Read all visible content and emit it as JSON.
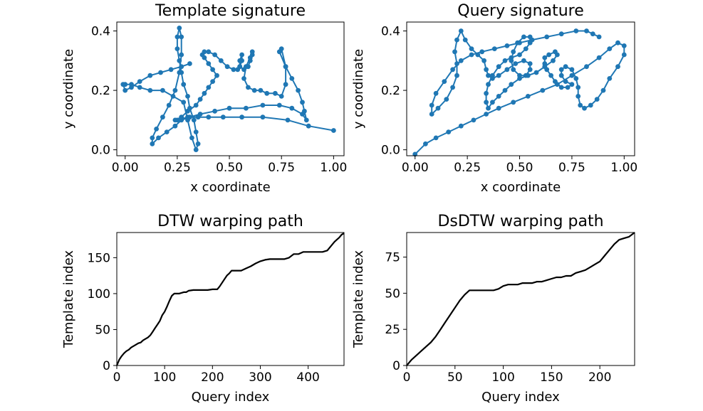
{
  "figure": {
    "panels": [
      {
        "id": "template-signature",
        "title": "Template signature",
        "xlabel": "x coordinate",
        "ylabel": "y coordinate",
        "xticks": [
          "0.00",
          "0.25",
          "0.50",
          "0.75",
          "1.00"
        ],
        "yticks": [
          "0.0",
          "0.2",
          "0.4"
        ]
      },
      {
        "id": "query-signature",
        "title": "Query signature",
        "xlabel": "x coordinate",
        "ylabel": "y coordinate",
        "xticks": [
          "0.00",
          "0.25",
          "0.50",
          "0.75",
          "1.00"
        ],
        "yticks": [
          "0.0",
          "0.2",
          "0.4"
        ]
      },
      {
        "id": "dtw-warping-path",
        "title": "DTW warping path",
        "xlabel": "Query index",
        "ylabel": "Template index",
        "xticks": [
          "0",
          "100",
          "200",
          "300",
          "400"
        ],
        "yticks": [
          "0",
          "50",
          "100",
          "150"
        ]
      },
      {
        "id": "dsdtw-warping-path",
        "title": "DsDTW warping path",
        "xlabel": "Query index",
        "ylabel": "Template index",
        "xticks": [
          "0",
          "50",
          "100",
          "150",
          "200"
        ],
        "yticks": [
          "0",
          "25",
          "50",
          "75"
        ]
      }
    ]
  },
  "colors": {
    "signature": "#1f77b4",
    "path": "#000000"
  },
  "chart_data": [
    {
      "type": "scatter",
      "title": "Template signature",
      "xlabel": "x coordinate",
      "ylabel": "y coordinate",
      "xlim": [
        -0.04,
        1.05
      ],
      "ylim": [
        -0.02,
        0.43
      ],
      "grid": false,
      "connected": true,
      "series": [
        {
          "x": [
            1.0,
            0.88,
            0.78,
            0.66,
            0.56,
            0.47,
            0.4,
            0.35,
            0.3,
            0.25,
            0.24,
            0.27,
            0.3,
            0.34,
            0.36,
            0.38,
            0.4,
            0.42,
            0.44,
            0.42,
            0.4,
            0.38,
            0.37,
            0.38,
            0.4,
            0.43,
            0.46,
            0.49,
            0.52,
            0.54,
            0.55,
            0.56,
            0.56,
            0.55,
            0.55,
            0.57,
            0.59,
            0.6,
            0.61,
            0.61,
            0.6,
            0.58,
            0.57,
            0.59,
            0.62,
            0.65,
            0.68,
            0.72,
            0.75,
            0.77,
            0.77,
            0.75,
            0.74,
            0.77,
            0.8,
            0.83,
            0.85,
            0.86,
            0.87,
            0.85,
            0.8,
            0.74,
            0.66,
            0.58,
            0.5,
            0.43,
            0.36,
            0.31,
            0.27,
            0.24,
            0.2,
            0.16,
            0.13,
            0.13,
            0.15,
            0.18,
            0.21,
            0.24,
            0.26,
            0.27,
            0.27,
            0.26,
            0.25,
            0.25,
            0.26,
            0.27,
            0.28,
            0.3,
            0.31,
            0.33,
            0.34,
            0.35,
            0.34,
            0.32,
            0.3,
            0.28,
            0.23,
            0.18,
            0.12,
            0.07,
            0.03,
            0.0,
            -0.01,
            0.0,
            0.03,
            0.07,
            0.12,
            0.17,
            0.22,
            0.27,
            0.31
          ],
          "y": [
            0.065,
            0.08,
            0.1,
            0.11,
            0.11,
            0.11,
            0.11,
            0.11,
            0.11,
            0.1,
            0.1,
            0.11,
            0.13,
            0.15,
            0.17,
            0.19,
            0.21,
            0.23,
            0.25,
            0.27,
            0.29,
            0.31,
            0.32,
            0.33,
            0.33,
            0.32,
            0.3,
            0.28,
            0.27,
            0.27,
            0.28,
            0.3,
            0.32,
            0.3,
            0.28,
            0.27,
            0.28,
            0.3,
            0.32,
            0.33,
            0.31,
            0.28,
            0.24,
            0.21,
            0.2,
            0.2,
            0.19,
            0.19,
            0.18,
            0.22,
            0.28,
            0.34,
            0.33,
            0.28,
            0.24,
            0.2,
            0.16,
            0.13,
            0.1,
            0.12,
            0.14,
            0.15,
            0.15,
            0.14,
            0.14,
            0.13,
            0.12,
            0.11,
            0.1,
            0.08,
            0.06,
            0.04,
            0.02,
            0.04,
            0.07,
            0.11,
            0.15,
            0.2,
            0.26,
            0.32,
            0.38,
            0.41,
            0.38,
            0.34,
            0.3,
            0.26,
            0.22,
            0.18,
            0.14,
            0.1,
            0.06,
            0.02,
            0.0,
            0.04,
            0.1,
            0.16,
            0.18,
            0.2,
            0.2,
            0.21,
            0.22,
            0.22,
            0.22,
            0.2,
            0.21,
            0.23,
            0.25,
            0.26,
            0.27,
            0.28,
            0.29
          ]
        }
      ]
    },
    {
      "type": "scatter",
      "title": "Query signature",
      "xlabel": "x coordinate",
      "ylabel": "y coordinate",
      "xlim": [
        -0.04,
        1.05
      ],
      "ylim": [
        -0.02,
        0.43
      ],
      "grid": false,
      "connected": true,
      "series": [
        {
          "x": [
            0.0,
            0.05,
            0.1,
            0.16,
            0.22,
            0.28,
            0.34,
            0.4,
            0.47,
            0.54,
            0.61,
            0.68,
            0.75,
            0.82,
            0.88,
            0.93,
            0.97,
            1.0,
            1.0,
            0.97,
            0.93,
            0.9,
            0.87,
            0.84,
            0.81,
            0.79,
            0.78,
            0.78,
            0.77,
            0.75,
            0.72,
            0.7,
            0.7,
            0.72,
            0.75,
            0.73,
            0.7,
            0.67,
            0.65,
            0.63,
            0.62,
            0.62,
            0.64,
            0.67,
            0.68,
            0.66,
            0.62,
            0.58,
            0.54,
            0.5,
            0.46,
            0.43,
            0.4,
            0.37,
            0.35,
            0.34,
            0.34,
            0.35,
            0.37,
            0.4,
            0.43,
            0.46,
            0.5,
            0.53,
            0.55,
            0.55,
            0.52,
            0.49,
            0.47,
            0.46,
            0.47,
            0.5,
            0.53,
            0.55,
            0.55,
            0.52,
            0.48,
            0.44,
            0.4,
            0.37,
            0.35,
            0.34,
            0.33,
            0.3,
            0.27,
            0.24,
            0.22,
            0.2,
            0.19,
            0.2,
            0.2,
            0.18,
            0.15,
            0.11,
            0.08,
            0.08,
            0.1,
            0.14,
            0.18,
            0.22,
            0.27,
            0.32,
            0.38,
            0.44,
            0.5,
            0.56,
            0.63,
            0.7,
            0.77,
            0.82,
            0.85,
            0.88
          ],
          "y": [
            -0.015,
            0.02,
            0.04,
            0.06,
            0.08,
            0.1,
            0.12,
            0.14,
            0.16,
            0.18,
            0.2,
            0.22,
            0.25,
            0.28,
            0.31,
            0.34,
            0.36,
            0.35,
            0.32,
            0.28,
            0.24,
            0.2,
            0.17,
            0.15,
            0.14,
            0.15,
            0.18,
            0.21,
            0.24,
            0.27,
            0.28,
            0.27,
            0.25,
            0.23,
            0.22,
            0.21,
            0.21,
            0.23,
            0.25,
            0.27,
            0.29,
            0.31,
            0.32,
            0.33,
            0.32,
            0.3,
            0.28,
            0.26,
            0.25,
            0.24,
            0.22,
            0.2,
            0.18,
            0.16,
            0.14,
            0.16,
            0.19,
            0.22,
            0.25,
            0.28,
            0.3,
            0.31,
            0.32,
            0.34,
            0.36,
            0.38,
            0.38,
            0.36,
            0.33,
            0.3,
            0.27,
            0.25,
            0.25,
            0.27,
            0.29,
            0.3,
            0.29,
            0.27,
            0.25,
            0.24,
            0.25,
            0.27,
            0.3,
            0.32,
            0.34,
            0.37,
            0.4,
            0.37,
            0.33,
            0.29,
            0.25,
            0.21,
            0.17,
            0.14,
            0.12,
            0.15,
            0.19,
            0.23,
            0.27,
            0.3,
            0.32,
            0.33,
            0.34,
            0.35,
            0.36,
            0.37,
            0.38,
            0.39,
            0.4,
            0.4,
            0.39,
            0.38
          ]
        }
      ]
    },
    {
      "type": "line",
      "title": "DTW warping path",
      "xlabel": "Query index",
      "ylabel": "Template index",
      "xlim": [
        0,
        475
      ],
      "ylim": [
        0,
        185
      ],
      "grid": false,
      "series": [
        {
          "x": [
            0,
            5,
            10,
            15,
            20,
            25,
            30,
            35,
            40,
            45,
            50,
            55,
            60,
            65,
            70,
            75,
            80,
            85,
            90,
            95,
            100,
            105,
            110,
            115,
            120,
            125,
            130,
            135,
            140,
            145,
            150,
            160,
            170,
            180,
            190,
            200,
            210,
            215,
            220,
            225,
            230,
            235,
            240,
            245,
            250,
            260,
            270,
            280,
            290,
            300,
            310,
            320,
            330,
            340,
            350,
            360,
            370,
            380,
            390,
            400,
            410,
            420,
            430,
            440,
            450,
            455,
            460,
            465,
            470,
            475
          ],
          "y": [
            0,
            8,
            13,
            17,
            20,
            22,
            25,
            27,
            29,
            31,
            32,
            35,
            37,
            39,
            42,
            47,
            52,
            57,
            62,
            70,
            75,
            82,
            90,
            97,
            100,
            100,
            100,
            101,
            102,
            102,
            104,
            105,
            105,
            105,
            105,
            106,
            106,
            110,
            115,
            120,
            125,
            128,
            132,
            132,
            132,
            132,
            135,
            138,
            142,
            145,
            147,
            148,
            148,
            148,
            148,
            150,
            155,
            155,
            158,
            158,
            158,
            158,
            158,
            160,
            168,
            172,
            175,
            178,
            182,
            184
          ]
        }
      ]
    },
    {
      "type": "line",
      "title": "DsDTW warping path",
      "xlabel": "Query index",
      "ylabel": "Template index",
      "xlim": [
        0,
        236
      ],
      "ylim": [
        0,
        92
      ],
      "grid": false,
      "series": [
        {
          "x": [
            0,
            5,
            10,
            15,
            20,
            25,
            30,
            35,
            40,
            45,
            50,
            55,
            60,
            65,
            70,
            75,
            80,
            85,
            90,
            95,
            100,
            105,
            110,
            115,
            120,
            125,
            130,
            135,
            140,
            145,
            150,
            155,
            160,
            165,
            170,
            175,
            180,
            185,
            190,
            195,
            200,
            205,
            210,
            215,
            220,
            225,
            230,
            236
          ],
          "y": [
            0,
            4,
            7,
            10,
            13,
            16,
            20,
            25,
            30,
            35,
            40,
            45,
            49,
            52,
            52,
            52,
            52,
            52,
            52,
            53,
            55,
            56,
            56,
            56,
            57,
            57,
            57,
            58,
            58,
            59,
            60,
            61,
            61,
            62,
            62,
            64,
            65,
            66,
            68,
            70,
            72,
            76,
            80,
            84,
            87,
            88,
            89,
            92
          ]
        }
      ]
    }
  ]
}
